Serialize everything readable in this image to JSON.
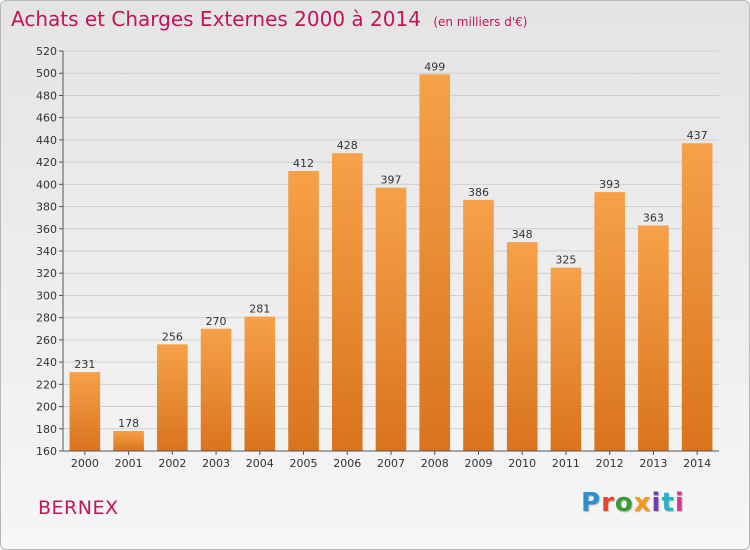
{
  "header": {
    "title": "Achats et Charges Externes 2000 à 2014",
    "unit_note": "(en milliers d'€)"
  },
  "footer": {
    "place": "BERNEX",
    "logo_text": "Proxiti",
    "logo_colors": [
      "#2b8fd6",
      "#e8442e",
      "#3a9a3a",
      "#f39a1e",
      "#7a3bb0",
      "#2bb1c7",
      "#d33a8c"
    ]
  },
  "colors": {
    "title": "#c0145c",
    "bar_top": "#f6a14a",
    "bar_bottom": "#d9741d",
    "grid": "#d0d0d0",
    "axis_text": "#333333"
  },
  "chart_data": {
    "type": "bar",
    "categories": [
      "2000",
      "2001",
      "2002",
      "2003",
      "2004",
      "2005",
      "2006",
      "2007",
      "2008",
      "2009",
      "2010",
      "2011",
      "2012",
      "2013",
      "2014"
    ],
    "values": [
      231,
      178,
      256,
      270,
      281,
      412,
      428,
      397,
      499,
      386,
      348,
      325,
      393,
      363,
      437
    ],
    "title": "Achats et Charges Externes 2000 à 2014",
    "ylim": [
      160,
      520
    ],
    "yticks": [
      160,
      180,
      200,
      220,
      240,
      260,
      280,
      300,
      320,
      340,
      360,
      380,
      400,
      420,
      440,
      460,
      480,
      500,
      520
    ],
    "grid": true,
    "legend": "none"
  }
}
